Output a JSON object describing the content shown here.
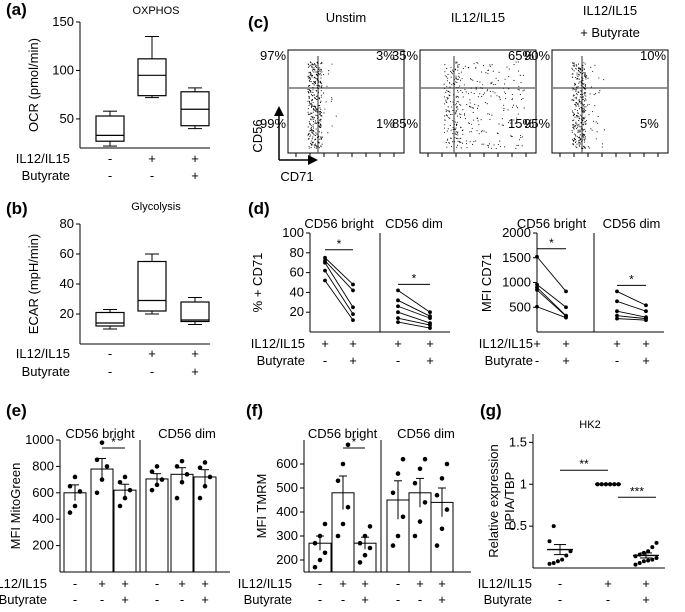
{
  "colors": {
    "ink": "#000000",
    "gate": "#555555",
    "bar_fill": "#ffffff"
  },
  "chart_data": [
    {
      "panel": "(a)",
      "type": "box",
      "title": "OXPHOS",
      "ylabel": "OCR (pmol/min)",
      "ylim": [
        20,
        150
      ],
      "yticks": [
        50,
        100,
        150
      ],
      "row_labels": [
        "IL12/IL15",
        "Butyrate"
      ],
      "row_signs": [
        [
          "-",
          "+",
          "+"
        ],
        [
          "-",
          "-",
          "+"
        ]
      ],
      "boxes": [
        {
          "min": 22,
          "q1": 27,
          "median": 33,
          "q3": 53,
          "max": 58
        },
        {
          "min": 72,
          "q1": 74,
          "median": 95,
          "q3": 112,
          "max": 135
        },
        {
          "min": 40,
          "q1": 43,
          "median": 60,
          "q3": 78,
          "max": 82
        }
      ]
    },
    {
      "panel": "(b)",
      "type": "box",
      "title": "Glycolysis",
      "ylabel": "ECAR (mpH/min)",
      "ylim": [
        0,
        80
      ],
      "yticks": [
        20,
        40,
        60,
        80
      ],
      "row_labels": [
        "IL12/IL15",
        "Butyrate"
      ],
      "row_signs": [
        [
          "-",
          "+",
          "+"
        ],
        [
          "-",
          "-",
          "+"
        ]
      ],
      "boxes": [
        {
          "min": 10,
          "q1": 12,
          "median": 14,
          "q3": 21,
          "max": 23
        },
        {
          "min": 20,
          "q1": 22,
          "median": 29,
          "q3": 55,
          "max": 60
        },
        {
          "min": 13,
          "q1": 15,
          "median": 16,
          "q3": 28,
          "max": 31
        }
      ]
    },
    {
      "panel": "(c)",
      "type": "scatter",
      "xlabel": "CD71",
      "ylabel": "CD56",
      "plots": [
        {
          "title": "Unstim",
          "q_ul": "97%",
          "q_ur": "3%",
          "q_ll": "99%",
          "q_lr": "1%",
          "hi_frac": 0.03,
          "spread": 0.22
        },
        {
          "title": "IL12/IL15",
          "q_ul": "35%",
          "q_ur": "65%",
          "q_ll": "85%",
          "q_lr": "15%",
          "hi_frac": 0.65,
          "spread": 0.9
        },
        {
          "title": "IL12/IL15",
          "title2": "+ Butyrate",
          "q_ul": "90%",
          "q_ur": "10%",
          "q_ll": "95%",
          "q_lr": "5%",
          "hi_frac": 0.1,
          "spread": 0.3
        }
      ]
    },
    {
      "panel": "(d)",
      "type": "paired",
      "ylabel": "% + CD71",
      "groups": [
        "CD56 bright",
        "CD56 dim"
      ],
      "ylim": [
        0,
        100
      ],
      "yticks": [
        20,
        40,
        60,
        80,
        100
      ],
      "row_labels": [
        "IL12/IL15",
        "Butyrate"
      ],
      "row_signs": [
        [
          "+",
          "+",
          "+",
          "+"
        ],
        [
          "-",
          "+",
          "-",
          "+"
        ]
      ],
      "significance": [
        "*",
        "*"
      ],
      "pairs": [
        [
          [
            75,
            48
          ],
          [
            72,
            42
          ],
          [
            70,
            25
          ],
          [
            62,
            18
          ],
          [
            52,
            12
          ]
        ],
        [
          [
            42,
            20
          ],
          [
            32,
            16
          ],
          [
            26,
            14
          ],
          [
            20,
            9
          ],
          [
            14,
            7
          ],
          [
            10,
            4
          ]
        ]
      ]
    },
    {
      "panel": "(d)",
      "type": "paired",
      "ylabel": "MFI CD71",
      "groups": [
        "CD56 bright",
        "CD56 dim"
      ],
      "ylim": [
        0,
        2000
      ],
      "yticks": [
        500,
        1000,
        1500,
        2000
      ],
      "row_labels": [
        "IL12/IL15",
        "Butyrate"
      ],
      "row_signs": [
        [
          "+",
          "+",
          "+",
          "+"
        ],
        [
          "-",
          "+",
          "-",
          "+"
        ]
      ],
      "significance": [
        "*",
        "*"
      ],
      "pairs": [
        [
          [
            1520,
            820
          ],
          [
            960,
            500
          ],
          [
            900,
            330
          ],
          [
            850,
            320
          ],
          [
            510,
            290
          ]
        ],
        [
          [
            820,
            540
          ],
          [
            620,
            420
          ],
          [
            420,
            300
          ],
          [
            330,
            270
          ],
          [
            270,
            240
          ]
        ]
      ]
    },
    {
      "panel": "(e)",
      "type": "bar",
      "ylabel": "MFI MitoGreen",
      "groups": [
        "CD56 bright",
        "CD56 dim"
      ],
      "ylim": [
        0,
        1000
      ],
      "yticks": [
        200,
        400,
        600,
        800,
        1000
      ],
      "row_labels": [
        "IL12/IL15",
        "Butyrate"
      ],
      "row_signs": [
        [
          "-",
          "+",
          "+",
          "-",
          "+",
          "+"
        ],
        [
          "-",
          "-",
          "+",
          "-",
          "-",
          "+"
        ]
      ],
      "significance": "*",
      "bars": [
        {
          "mean": 600,
          "sem": 60,
          "points": [
            450,
            500,
            610,
            650,
            720
          ]
        },
        {
          "mean": 780,
          "sem": 80,
          "points": [
            600,
            700,
            800,
            850,
            980
          ]
        },
        {
          "mean": 620,
          "sem": 45,
          "points": [
            500,
            560,
            620,
            680,
            720
          ]
        },
        {
          "mean": 705,
          "sem": 40,
          "points": [
            620,
            660,
            700,
            760,
            800
          ]
        },
        {
          "mean": 740,
          "sem": 50,
          "points": [
            560,
            680,
            740,
            800,
            840
          ]
        },
        {
          "mean": 720,
          "sem": 55,
          "points": [
            560,
            650,
            720,
            790,
            830
          ]
        }
      ]
    },
    {
      "panel": "(f)",
      "type": "bar",
      "ylabel": "MFI TMRM",
      "groups": [
        "CD56 bright",
        "CD56 dim"
      ],
      "ylim": [
        150,
        700
      ],
      "yticks": [
        200,
        300,
        400,
        500,
        600
      ],
      "row_labels": [
        "IL12/IL15",
        "Butyrate"
      ],
      "row_signs": [
        [
          "-",
          "+",
          "+",
          "-",
          "+",
          "+"
        ],
        [
          "-",
          "-",
          "+",
          "-",
          "-",
          "+"
        ]
      ],
      "significance": "*",
      "bars": [
        {
          "mean": 270,
          "sem": 30,
          "points": [
            170,
            200,
            230,
            270,
            300,
            350
          ]
        },
        {
          "mean": 480,
          "sem": 70,
          "points": [
            300,
            350,
            420,
            530,
            600,
            680
          ]
        },
        {
          "mean": 270,
          "sem": 25,
          "points": [
            190,
            220,
            250,
            270,
            300,
            340
          ]
        },
        {
          "mean": 450,
          "sem": 80,
          "points": [
            260,
            300,
            380,
            480,
            560,
            620
          ]
        },
        {
          "mean": 480,
          "sem": 60,
          "points": [
            300,
            360,
            440,
            520,
            580,
            620
          ]
        },
        {
          "mean": 440,
          "sem": 60,
          "points": [
            260,
            330,
            410,
            470,
            540,
            600
          ]
        }
      ]
    },
    {
      "panel": "(g)",
      "type": "dot",
      "title": "HK2",
      "ylabel": "Relative expression",
      "ylabel2": "PPIA/TBP",
      "ylim": [
        0,
        1.6
      ],
      "yticks": [
        0.5,
        1,
        1.5
      ],
      "row_labels": [
        "IL12/IL15",
        "Butyrate"
      ],
      "row_signs": [
        [
          "-",
          "+",
          "+"
        ],
        [
          "-",
          "-",
          "+"
        ]
      ],
      "significance": [
        "**",
        "***"
      ],
      "groups": [
        {
          "mean": 0.22,
          "sem": 0.06,
          "points": [
            0.05,
            0.06,
            0.08,
            0.1,
            0.15,
            0.2,
            0.32,
            0.5
          ]
        },
        {
          "mean": 1.0,
          "sem": 0.0,
          "points": [
            1,
            1,
            1,
            1,
            1,
            1,
            1,
            1,
            1,
            1,
            1,
            1
          ]
        },
        {
          "mean": 0.15,
          "sem": 0.03,
          "points": [
            0.04,
            0.06,
            0.08,
            0.09,
            0.1,
            0.12,
            0.14,
            0.16,
            0.18,
            0.2,
            0.25,
            0.3
          ]
        }
      ]
    }
  ]
}
